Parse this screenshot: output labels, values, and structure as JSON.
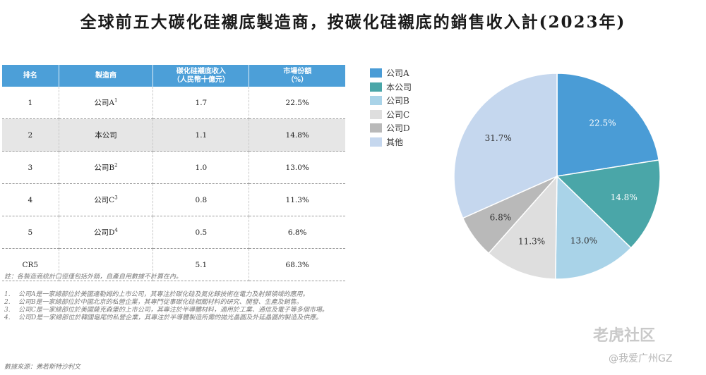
{
  "title": "全球前五大碳化硅襯底製造商，按碳化硅襯底的銷售收入計(2023年)",
  "table": {
    "headers": [
      "排名",
      "製造商",
      "碳化硅襯底收入\n（人民幣十億元）",
      "市場份額\n（%）"
    ],
    "rows": [
      {
        "rank": "1",
        "maker": "公司A",
        "sup": "1",
        "revenue": "1.7",
        "share": "22.5%"
      },
      {
        "rank": "2",
        "maker": "本公司",
        "sup": "",
        "revenue": "1.1",
        "share": "14.8%"
      },
      {
        "rank": "3",
        "maker": "公司B",
        "sup": "2",
        "revenue": "1.0",
        "share": "13.0%"
      },
      {
        "rank": "4",
        "maker": "公司C",
        "sup": "3",
        "revenue": "0.8",
        "share": "11.3%"
      },
      {
        "rank": "5",
        "maker": "公司D",
        "sup": "4",
        "revenue": "0.5",
        "share": "6.8%"
      },
      {
        "rank": "CR5",
        "maker": "",
        "sup": "",
        "revenue": "5.1",
        "share": "68.3%"
      }
    ]
  },
  "notes": {
    "main": "註：各製造商統計口徑僅包括外銷，自產自用數據不計算在內。",
    "footnotes": [
      {
        "num": "1.",
        "text": "公司A是一家總部位於美國達勒姆的上市公司，其專注於碳化硅及氮化鎵技術在電力及射頻領域的應用。"
      },
      {
        "num": "2.",
        "text": "公司B是一家總部位於中國北京的私營企業，其專門從事碳化硅相關材料的研究、開發、生產及銷售。"
      },
      {
        "num": "3.",
        "text": "公司C是一家總部位於美國薩克森堡的上市公司，其專注於半導體材料，適用於工業、通信及電子等多個市場。"
      },
      {
        "num": "4.",
        "text": "公司D是一家總部位於韓國龜尾的私營企業，其專注於半導體製造所需的拋光晶圓及外延晶圓的製造及供應。"
      }
    ],
    "source": "數據來源：弗若斯特沙利文"
  },
  "chart_data": {
    "type": "pie",
    "title": "全球前五大碳化硅襯底製造商，按碳化硅襯底的銷售收入計(2023年)",
    "legend_position": "top-left",
    "slices": [
      {
        "label": "公司A",
        "value": 22.5,
        "display": "22.5%",
        "color": "#4a9cd6",
        "text_color": "#ffffff"
      },
      {
        "label": "本公司",
        "value": 14.8,
        "display": "14.8%",
        "color": "#4aa6a8",
        "text_color": "#ffffff"
      },
      {
        "label": "公司B",
        "value": 13.0,
        "display": "13.0%",
        "color": "#a9d3e8",
        "text_color": "#333333"
      },
      {
        "label": "公司C",
        "value": 11.3,
        "display": "11.3%",
        "color": "#dedede",
        "text_color": "#333333"
      },
      {
        "label": "公司D",
        "value": 6.8,
        "display": "6.8%",
        "color": "#b9b9b9",
        "text_color": "#333333"
      },
      {
        "label": "其他",
        "value": 31.7,
        "display": "31.7%",
        "color": "#c5d7ee",
        "text_color": "#333333"
      }
    ]
  },
  "watermark": {
    "line1": "老虎社区",
    "line2": "@我爱广州GZ"
  }
}
